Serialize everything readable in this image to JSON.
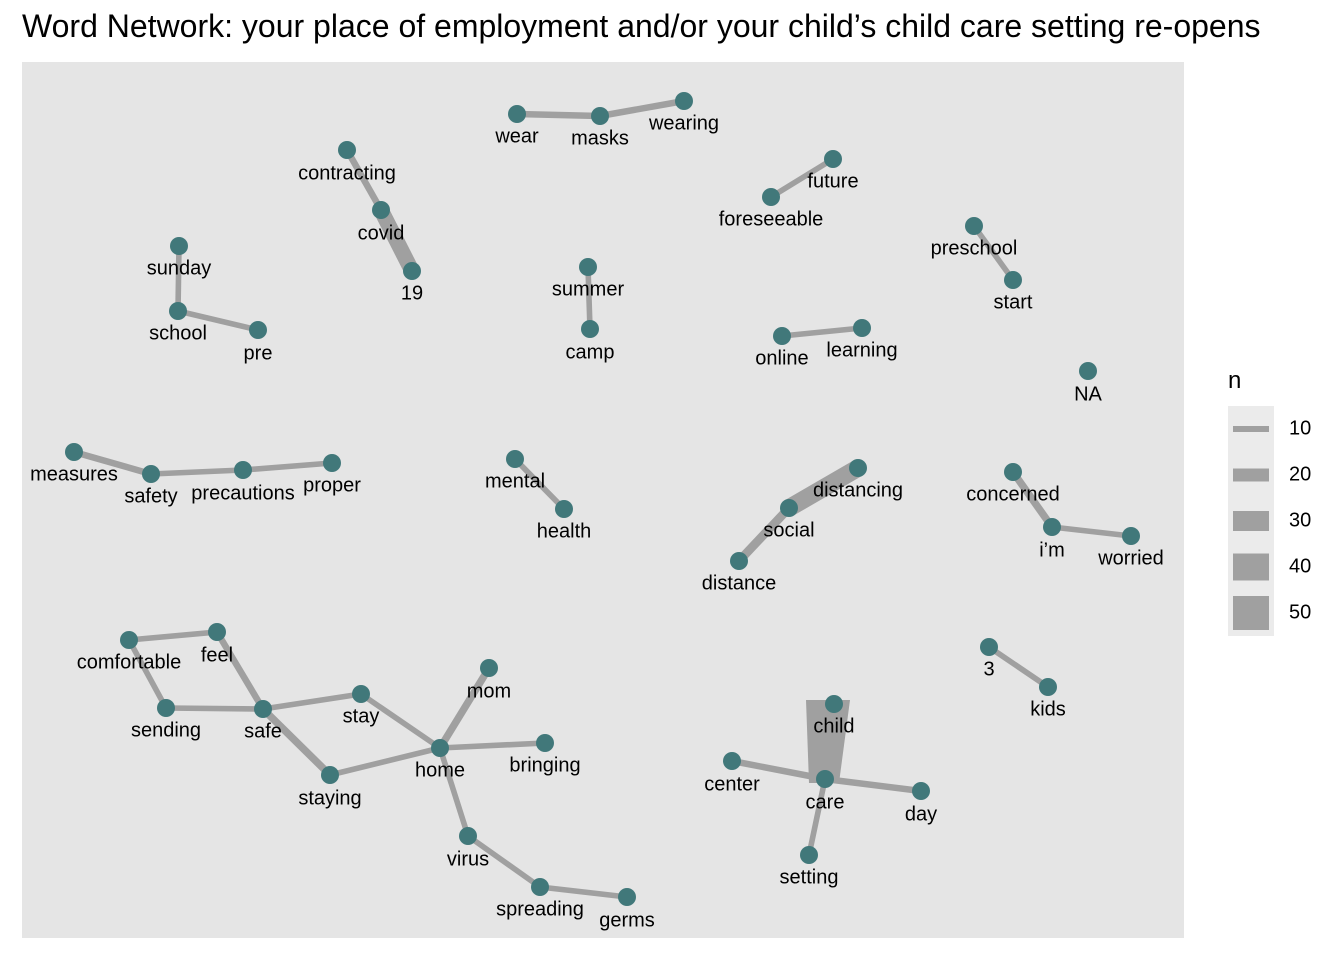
{
  "chart_data": {
    "type": "network",
    "title": "Word Network: your place of employment and/or your child’s child care setting re-opens",
    "colors": {
      "panel": "#e5e5e5",
      "edge": "#a0a0a0",
      "node": "#41787a",
      "legend_bg": "#ebebeb"
    },
    "legend": {
      "title": "n",
      "position": "right",
      "values": [
        10,
        20,
        30,
        40,
        50
      ]
    },
    "nodes": [
      {
        "word": "wear"
      },
      {
        "word": "masks"
      },
      {
        "word": "wearing"
      },
      {
        "word": "contracting"
      },
      {
        "word": "covid"
      },
      {
        "word": "19"
      },
      {
        "word": "future"
      },
      {
        "word": "foreseeable"
      },
      {
        "word": "preschool"
      },
      {
        "word": "start"
      },
      {
        "word": "sunday"
      },
      {
        "word": "school"
      },
      {
        "word": "pre"
      },
      {
        "word": "summer"
      },
      {
        "word": "camp"
      },
      {
        "word": "online"
      },
      {
        "word": "learning"
      },
      {
        "word": "NA"
      },
      {
        "word": "measures"
      },
      {
        "word": "safety"
      },
      {
        "word": "precautions"
      },
      {
        "word": "proper"
      },
      {
        "word": "mental"
      },
      {
        "word": "health"
      },
      {
        "word": "distancing"
      },
      {
        "word": "social"
      },
      {
        "word": "distance"
      },
      {
        "word": "concerned"
      },
      {
        "word": "i’m"
      },
      {
        "word": "worried"
      },
      {
        "word": "comfortable"
      },
      {
        "word": "feel"
      },
      {
        "word": "sending"
      },
      {
        "word": "safe"
      },
      {
        "word": "stay"
      },
      {
        "word": "staying"
      },
      {
        "word": "home"
      },
      {
        "word": "mom"
      },
      {
        "word": "bringing"
      },
      {
        "word": "virus"
      },
      {
        "word": "spreading"
      },
      {
        "word": "germs"
      },
      {
        "word": "3"
      },
      {
        "word": "kids"
      },
      {
        "word": "child"
      },
      {
        "word": "center"
      },
      {
        "word": "care"
      },
      {
        "word": "day"
      },
      {
        "word": "setting"
      }
    ],
    "edges": [
      {
        "from": "wear",
        "to": "masks",
        "n": 10
      },
      {
        "from": "masks",
        "to": "wearing",
        "n": 10
      },
      {
        "from": "contracting",
        "to": "covid",
        "n": 10
      },
      {
        "from": "covid",
        "to": "19",
        "n": 30
      },
      {
        "from": "foreseeable",
        "to": "future",
        "n": 8
      },
      {
        "from": "preschool",
        "to": "start",
        "n": 8
      },
      {
        "from": "sunday",
        "to": "school",
        "n": 8
      },
      {
        "from": "school",
        "to": "pre",
        "n": 8
      },
      {
        "from": "summer",
        "to": "camp",
        "n": 8
      },
      {
        "from": "online",
        "to": "learning",
        "n": 8
      },
      {
        "from": "measures",
        "to": "safety",
        "n": 10
      },
      {
        "from": "safety",
        "to": "precautions",
        "n": 8
      },
      {
        "from": "precautions",
        "to": "proper",
        "n": 8
      },
      {
        "from": "mental",
        "to": "health",
        "n": 8
      },
      {
        "from": "social",
        "to": "distancing",
        "n": 35
      },
      {
        "from": "social",
        "to": "distance",
        "n": 15
      },
      {
        "from": "concerned",
        "to": "i’m",
        "n": 12
      },
      {
        "from": "i’m",
        "to": "worried",
        "n": 8
      },
      {
        "from": "comfortable",
        "to": "feel",
        "n": 8
      },
      {
        "from": "comfortable",
        "to": "sending",
        "n": 8
      },
      {
        "from": "sending",
        "to": "safe",
        "n": 8
      },
      {
        "from": "feel",
        "to": "safe",
        "n": 10
      },
      {
        "from": "safe",
        "to": "stay",
        "n": 8
      },
      {
        "from": "safe",
        "to": "staying",
        "n": 12
      },
      {
        "from": "staying",
        "to": "home",
        "n": 8
      },
      {
        "from": "stay",
        "to": "home",
        "n": 8
      },
      {
        "from": "home",
        "to": "mom",
        "n": 12
      },
      {
        "from": "home",
        "to": "bringing",
        "n": 8
      },
      {
        "from": "home",
        "to": "virus",
        "n": 8
      },
      {
        "from": "virus",
        "to": "spreading",
        "n": 8
      },
      {
        "from": "spreading",
        "to": "germs",
        "n": 8
      },
      {
        "from": "3",
        "to": "kids",
        "n": 8
      },
      {
        "from": "child",
        "to": "care",
        "n": 55
      },
      {
        "from": "center",
        "to": "care",
        "n": 10
      },
      {
        "from": "care",
        "to": "day",
        "n": 10
      },
      {
        "from": "care",
        "to": "setting",
        "n": 8
      }
    ]
  }
}
